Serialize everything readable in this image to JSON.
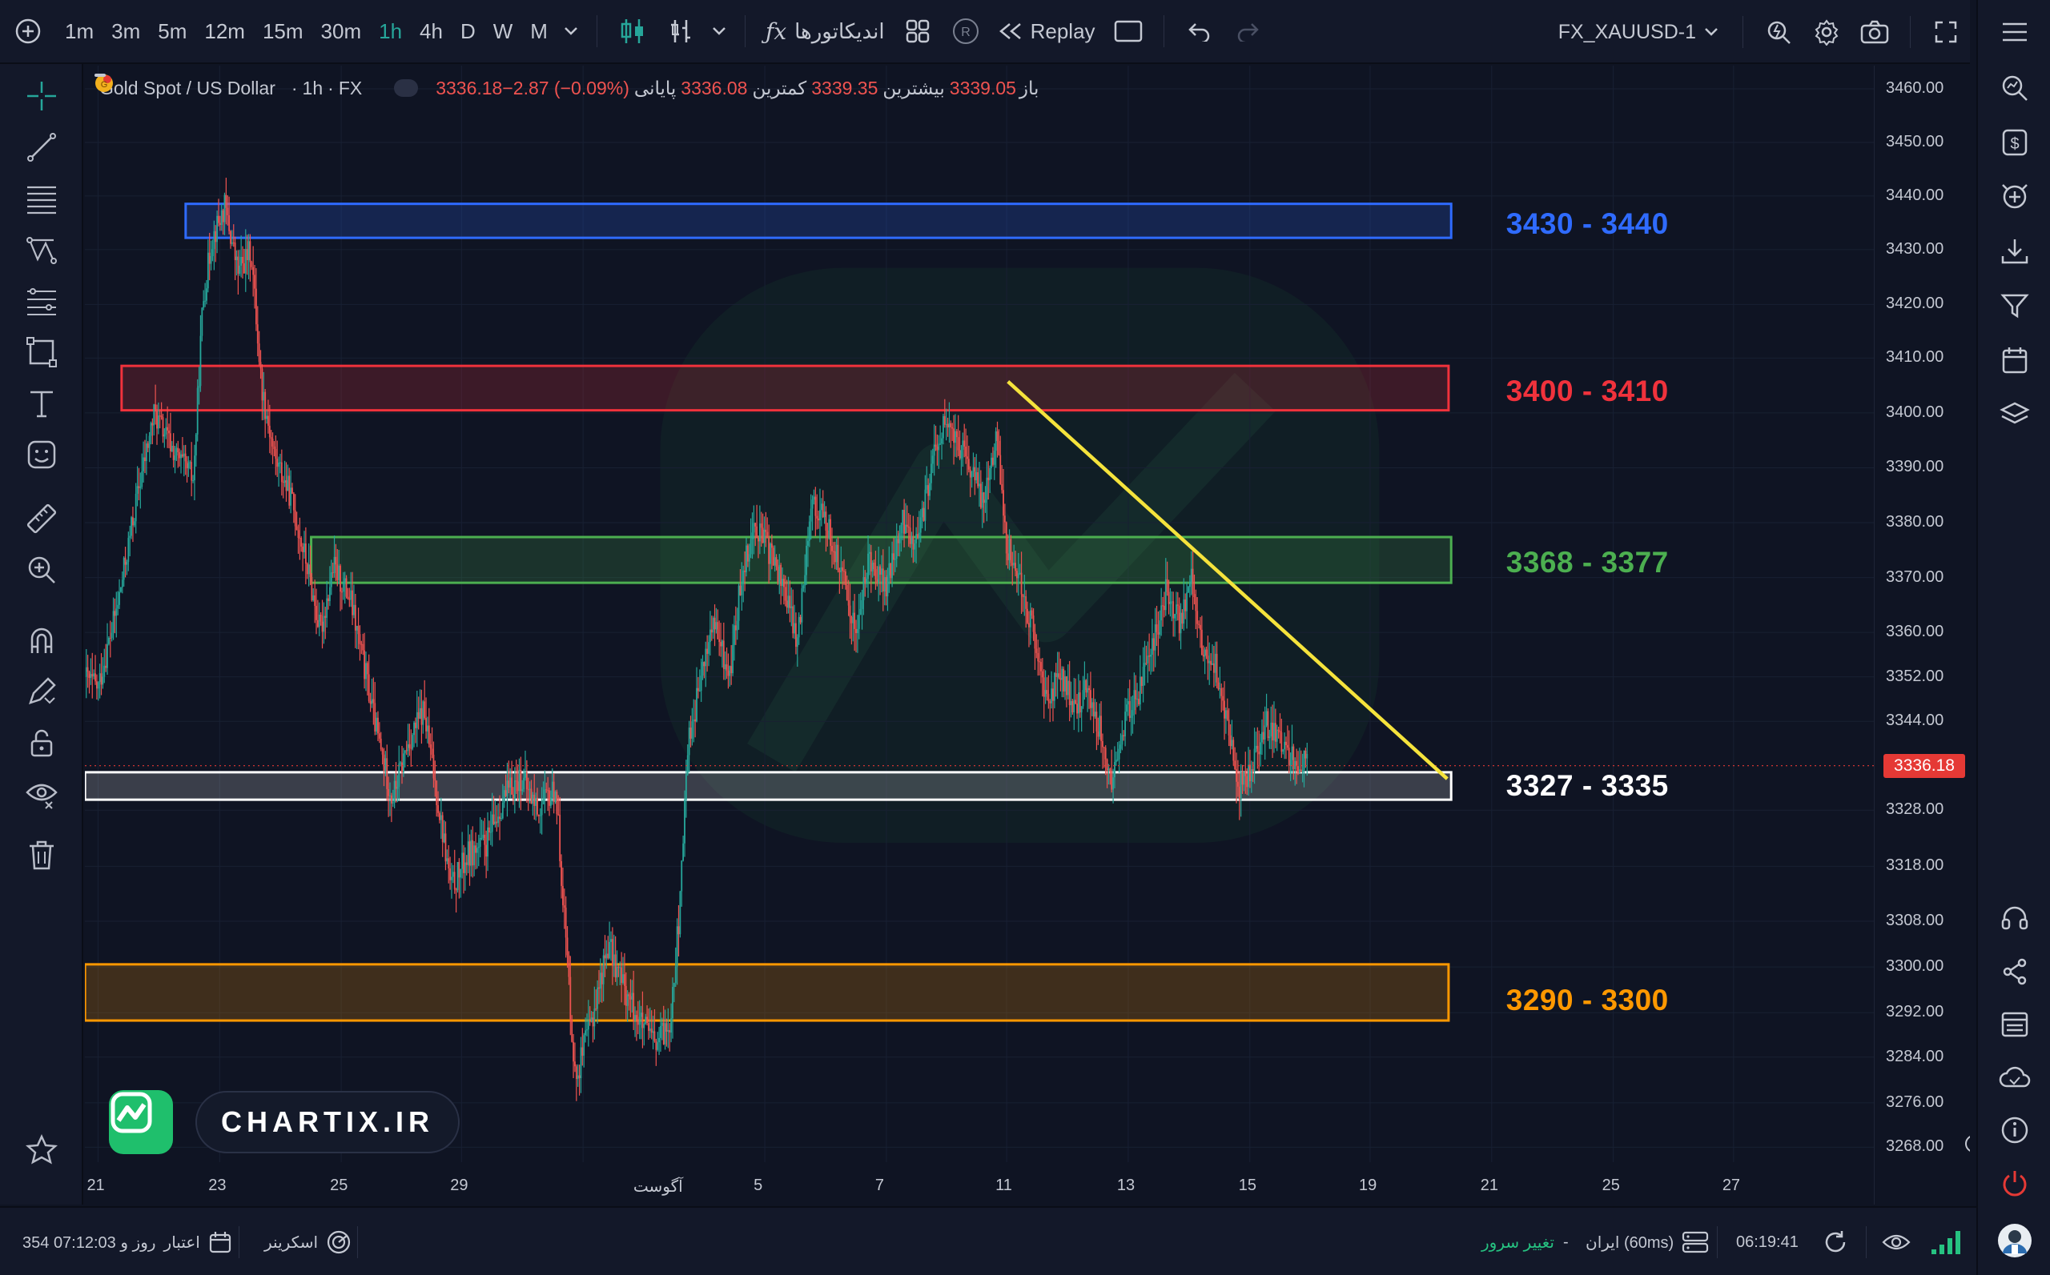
{
  "toolbar": {
    "intervals": [
      "1m",
      "3m",
      "5m",
      "12m",
      "15m",
      "30m",
      "1h",
      "4h",
      "D",
      "W",
      "M"
    ],
    "active_interval": "1h",
    "indicators_label": "اندیکاتورها",
    "replay_label": "Replay",
    "symbol": "FX_XAUUSD-1"
  },
  "legend": {
    "symbol_title": "Gold Spot / US Dollar",
    "interval": "1h",
    "exchange": "FX",
    "open_label": "باز",
    "open_value": "3339.05",
    "high_label": "بیشترین",
    "high_value": "3339.35",
    "low_label": "کمترین",
    "low_value": "3336.08",
    "close_label": "پایانی",
    "close_value": "3336.18",
    "change": "−2.87 (−0.09%)"
  },
  "price_axis": {
    "labels": [
      "3460.00",
      "3450.00",
      "3440.00",
      "3430.00",
      "3420.00",
      "3410.00",
      "3400.00",
      "3390.00",
      "3380.00",
      "3370.00",
      "3360.00",
      "3352.00",
      "3344.00",
      "3328.00",
      "3318.00",
      "3308.00",
      "3300.00",
      "3292.00",
      "3284.00",
      "3276.00",
      "3268.00"
    ],
    "current_price": "3336.18"
  },
  "time_axis": {
    "labels": [
      "21",
      "23",
      "25",
      "29",
      "آگوست",
      "5",
      "7",
      "11",
      "13",
      "15",
      "19",
      "21",
      "25",
      "27"
    ]
  },
  "zones": [
    {
      "label": "3430 - 3440",
      "low": 3430,
      "high": 3440,
      "color": "#2f6bff"
    },
    {
      "label": "3400 - 3410",
      "low": 3400,
      "high": 3410,
      "color": "#f0323c"
    },
    {
      "label": "3368 - 3377",
      "low": 3368,
      "high": 3377,
      "color": "#4caf50"
    },
    {
      "label": "3327 - 3335",
      "low": 3327,
      "high": 3335,
      "color": "#ffffff"
    },
    {
      "label": "3290 - 3300",
      "low": 3290,
      "high": 3300,
      "color": "#ff9800"
    }
  ],
  "trendline": {
    "color": "#f5e33c"
  },
  "watermark": {
    "brand": "CHARTIX.IR"
  },
  "status_bar": {
    "credit_label": "اعتبار",
    "credit_value": "354 روز و 07:12:03",
    "screener_label": "اسکرینر",
    "server_change_label": "تغییر سرور",
    "server_name": "ایران (60ms)",
    "clock": "06:19:41"
  },
  "colors": {
    "up": "#26a69a",
    "down": "#ef5350",
    "background": "#0f1423"
  }
}
